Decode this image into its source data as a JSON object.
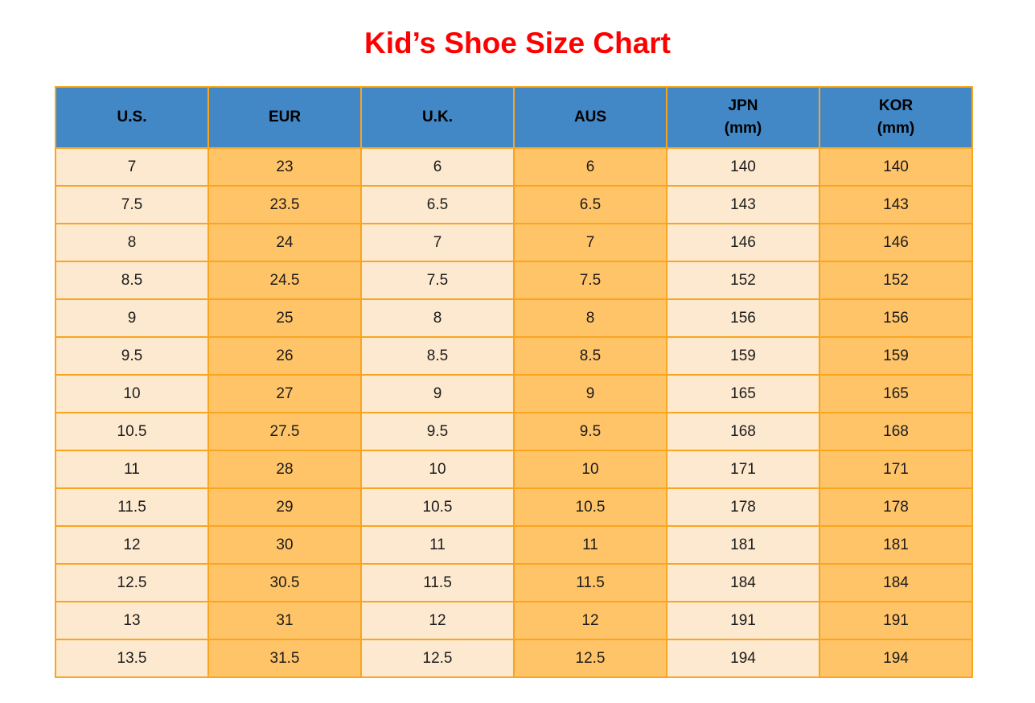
{
  "title": "Kid’s Shoe Size Chart",
  "colors": {
    "title_red": "#FF0000",
    "header_blue": "#4287C6",
    "header_text": "#000000",
    "cell_cream": "#FDE9CF",
    "cell_orange": "#FFC368",
    "grid_orange": "#F9A51F",
    "body_text": "#1C1C1C",
    "page_background": "#FFFFFF"
  },
  "chart_data": {
    "type": "table",
    "title": "Kid’s Shoe Size Chart",
    "columns": [
      {
        "label": "U.S.",
        "sub": ""
      },
      {
        "label": "EUR",
        "sub": ""
      },
      {
        "label": "U.K.",
        "sub": ""
      },
      {
        "label": "AUS",
        "sub": ""
      },
      {
        "label": "JPN",
        "sub": "(mm)"
      },
      {
        "label": "KOR",
        "sub": "(mm)"
      }
    ],
    "rows": [
      [
        "7",
        "23",
        "6",
        "6",
        "140",
        "140"
      ],
      [
        "7.5",
        "23.5",
        "6.5",
        "6.5",
        "143",
        "143"
      ],
      [
        "8",
        "24",
        "7",
        "7",
        "146",
        "146"
      ],
      [
        "8.5",
        "24.5",
        "7.5",
        "7.5",
        "152",
        "152"
      ],
      [
        "9",
        "25",
        "8",
        "8",
        "156",
        "156"
      ],
      [
        "9.5",
        "26",
        "8.5",
        "8.5",
        "159",
        "159"
      ],
      [
        "10",
        "27",
        "9",
        "9",
        "165",
        "165"
      ],
      [
        "10.5",
        "27.5",
        "9.5",
        "9.5",
        "168",
        "168"
      ],
      [
        "11",
        "28",
        "10",
        "10",
        "171",
        "171"
      ],
      [
        "11.5",
        "29",
        "10.5",
        "10.5",
        "178",
        "178"
      ],
      [
        "12",
        "30",
        "11",
        "11",
        "181",
        "181"
      ],
      [
        "12.5",
        "30.5",
        "11.5",
        "11.5",
        "184",
        "184"
      ],
      [
        "13",
        "31",
        "12",
        "12",
        "191",
        "191"
      ],
      [
        "13.5",
        "31.5",
        "12.5",
        "12.5",
        "194",
        "194"
      ]
    ]
  }
}
